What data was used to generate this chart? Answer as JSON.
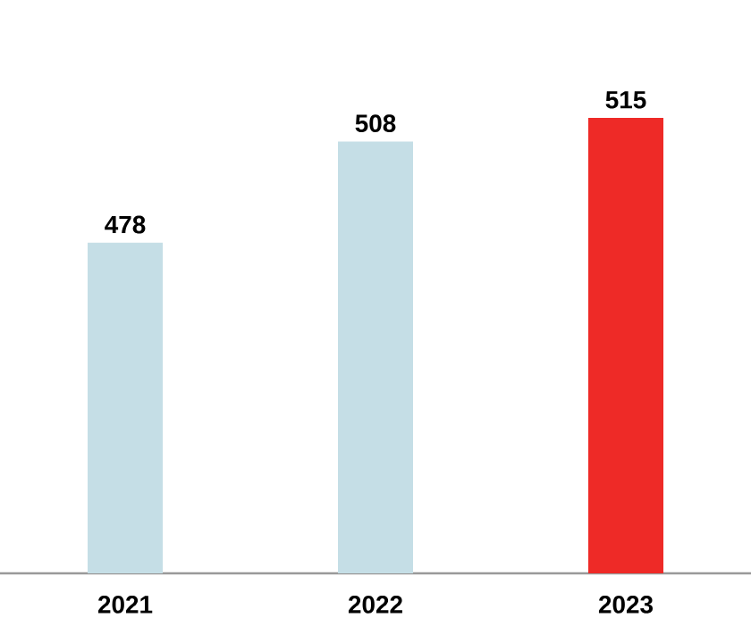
{
  "chart_data": {
    "type": "bar",
    "categories": [
      "2021",
      "2022",
      "2023"
    ],
    "values": [
      478,
      508,
      515
    ],
    "colors": [
      "#c5dee6",
      "#c5dee6",
      "#ee2a27"
    ],
    "ylim": [
      380,
      515
    ],
    "tick_labels": "x",
    "data_labels": true
  }
}
